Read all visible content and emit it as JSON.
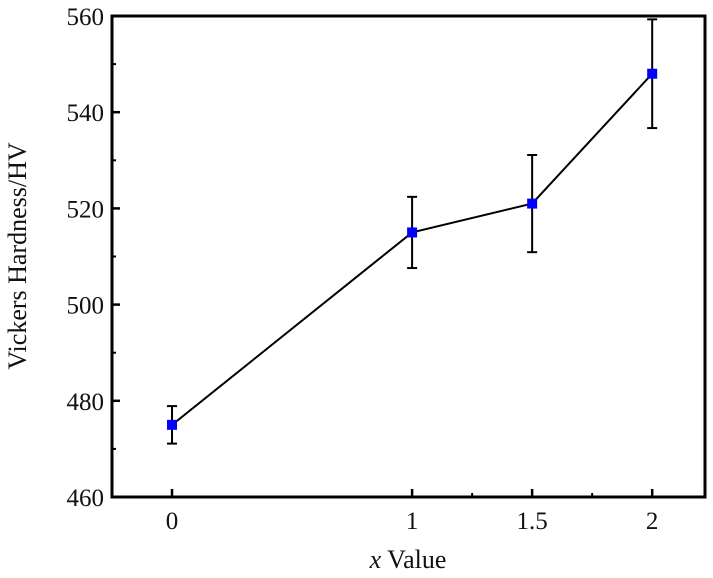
{
  "chart_data": {
    "type": "line",
    "title": "",
    "xlabel_var": "x",
    "xlabel_rest": " Value",
    "ylabel": "Vickers Hardness/HV",
    "xlim": [
      -0.25,
      2.22
    ],
    "ylim": [
      460,
      560
    ],
    "x_ticks": [
      0,
      1,
      1.5,
      2
    ],
    "x_tick_labels": [
      "0",
      "1",
      "1.5",
      "2"
    ],
    "x_minor_ticks": [
      1.25,
      1.75
    ],
    "y_ticks": [
      460,
      480,
      500,
      520,
      540,
      560
    ],
    "y_tick_labels": [
      "460",
      "480",
      "500",
      "520",
      "540",
      "560"
    ],
    "y_minor_ticks": [
      470,
      490,
      510,
      530,
      550
    ],
    "grid": false,
    "series": [
      {
        "name": "Vickers Hardness",
        "color": "#0000ff",
        "line_color": "#000000",
        "marker": "square",
        "x": [
          0,
          1,
          1.5,
          2
        ],
        "y": [
          475,
          515,
          521,
          548
        ],
        "error": [
          3.9,
          7.4,
          10.1,
          11.3
        ]
      }
    ]
  }
}
